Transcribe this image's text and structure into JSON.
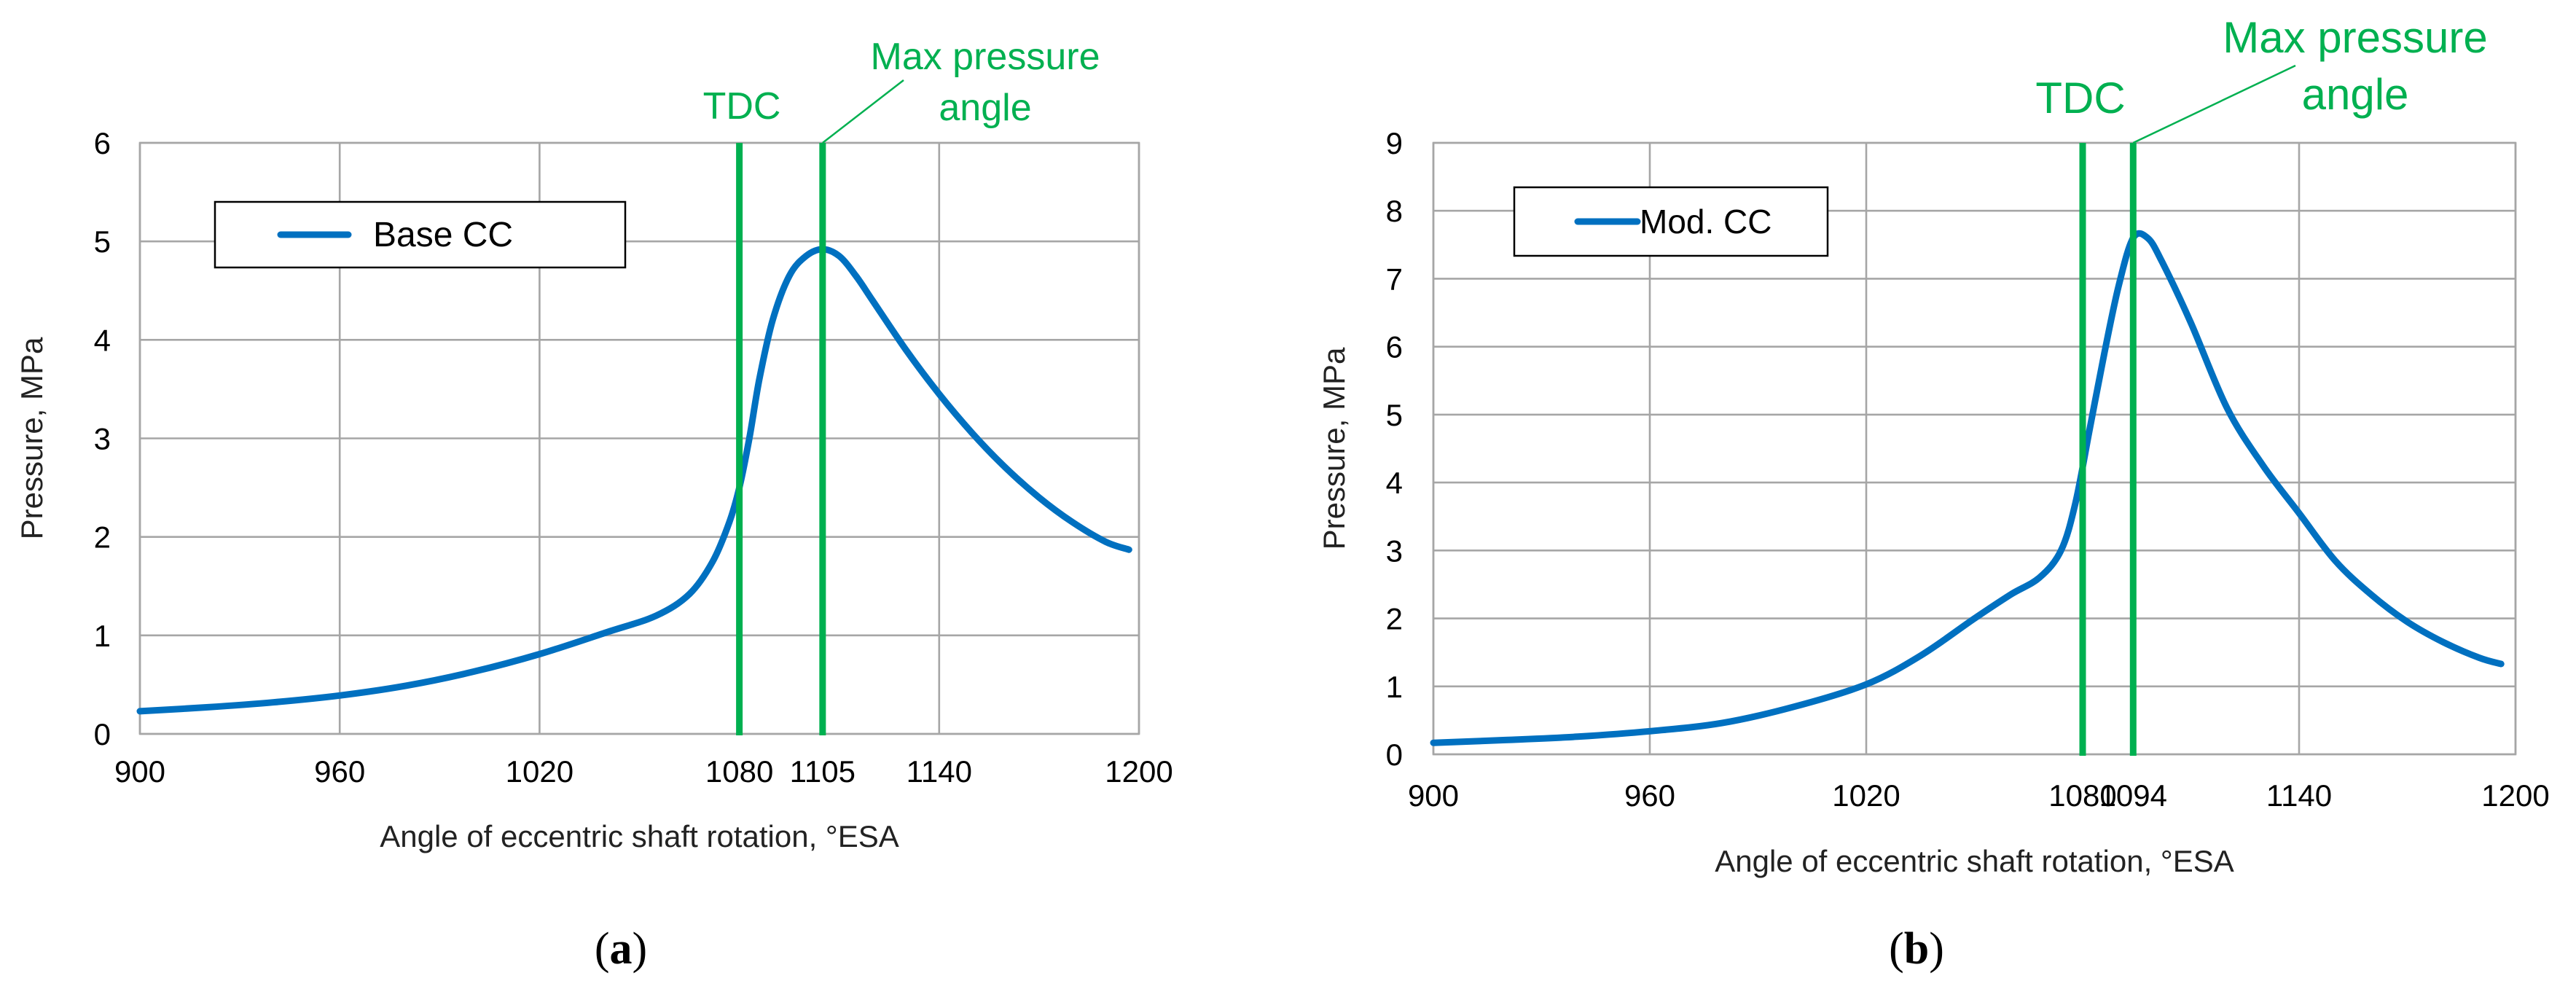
{
  "chart_data": [
    {
      "type": "line",
      "panel": "a",
      "caption_letter": "a",
      "xlabel": "Angle of eccentric shaft rotation,  °ESA",
      "ylabel": "Pressure, MPa",
      "xlim": [
        900,
        1200
      ],
      "ylim": [
        0,
        6
      ],
      "x_ticks": [
        900,
        960,
        1020,
        1080,
        1105,
        1140,
        1200
      ],
      "x_ticks_labels": [
        "900",
        "960",
        "1020",
        "1080",
        "1105",
        "1140",
        "1200"
      ],
      "y_ticks": [
        0,
        1,
        2,
        3,
        4,
        5,
        6
      ],
      "grid": true,
      "legend": "top-left",
      "series": [
        {
          "name": "Base CC",
          "color": "#0070c0",
          "x": [
            900,
            920,
            940,
            960,
            980,
            1000,
            1020,
            1040,
            1055,
            1065,
            1072,
            1077,
            1080,
            1083,
            1086,
            1090,
            1095,
            1100,
            1105,
            1110,
            1115,
            1120,
            1130,
            1140,
            1150,
            1160,
            1170,
            1180,
            1190,
            1197
          ],
          "y": [
            0.23,
            0.27,
            0.32,
            0.39,
            0.49,
            0.63,
            0.81,
            1.03,
            1.2,
            1.42,
            1.75,
            2.15,
            2.5,
            3.0,
            3.6,
            4.2,
            4.65,
            4.85,
            4.92,
            4.85,
            4.65,
            4.4,
            3.9,
            3.45,
            3.05,
            2.7,
            2.4,
            2.15,
            1.95,
            1.87
          ]
        }
      ],
      "annotations": [
        {
          "label": "TDC",
          "x": 1080,
          "color": "#00b050"
        },
        {
          "label_line1": "Max pressure",
          "label_line2": "angle",
          "x": 1105,
          "color": "#00b050"
        }
      ]
    },
    {
      "type": "line",
      "panel": "b",
      "caption_letter": "b",
      "xlabel": "Angle of eccentric shaft rotation, °ESA",
      "ylabel": "Pressure, MPa",
      "xlim": [
        900,
        1200
      ],
      "ylim": [
        0,
        9
      ],
      "x_ticks": [
        900,
        960,
        1020,
        1080,
        1094,
        1140,
        1200
      ],
      "x_ticks_labels": [
        "900",
        "960",
        "1020",
        "1080",
        "1094",
        "1140",
        "1200"
      ],
      "y_ticks": [
        0,
        1,
        2,
        3,
        4,
        5,
        6,
        7,
        8,
        9
      ],
      "grid": true,
      "legend": "top-left",
      "series": [
        {
          "name": "Mod. CC",
          "color": "#0070c0",
          "x": [
            900,
            920,
            940,
            960,
            980,
            1000,
            1020,
            1035,
            1050,
            1060,
            1068,
            1074,
            1078,
            1082,
            1086,
            1090,
            1094,
            1098,
            1102,
            1110,
            1120,
            1130,
            1140,
            1150,
            1160,
            1170,
            1180,
            1190,
            1196
          ],
          "y": [
            0.17,
            0.21,
            0.26,
            0.34,
            0.46,
            0.7,
            1.03,
            1.45,
            2.0,
            2.35,
            2.6,
            3.0,
            3.7,
            4.8,
            5.9,
            6.9,
            7.6,
            7.6,
            7.25,
            6.35,
            5.1,
            4.25,
            3.55,
            2.85,
            2.35,
            1.95,
            1.65,
            1.42,
            1.33
          ]
        }
      ],
      "annotations": [
        {
          "label": "TDC",
          "x": 1080,
          "color": "#00b050"
        },
        {
          "label_line1": "Max pressure",
          "label_line2": "angle",
          "x": 1094,
          "color": "#00b050"
        }
      ]
    }
  ]
}
